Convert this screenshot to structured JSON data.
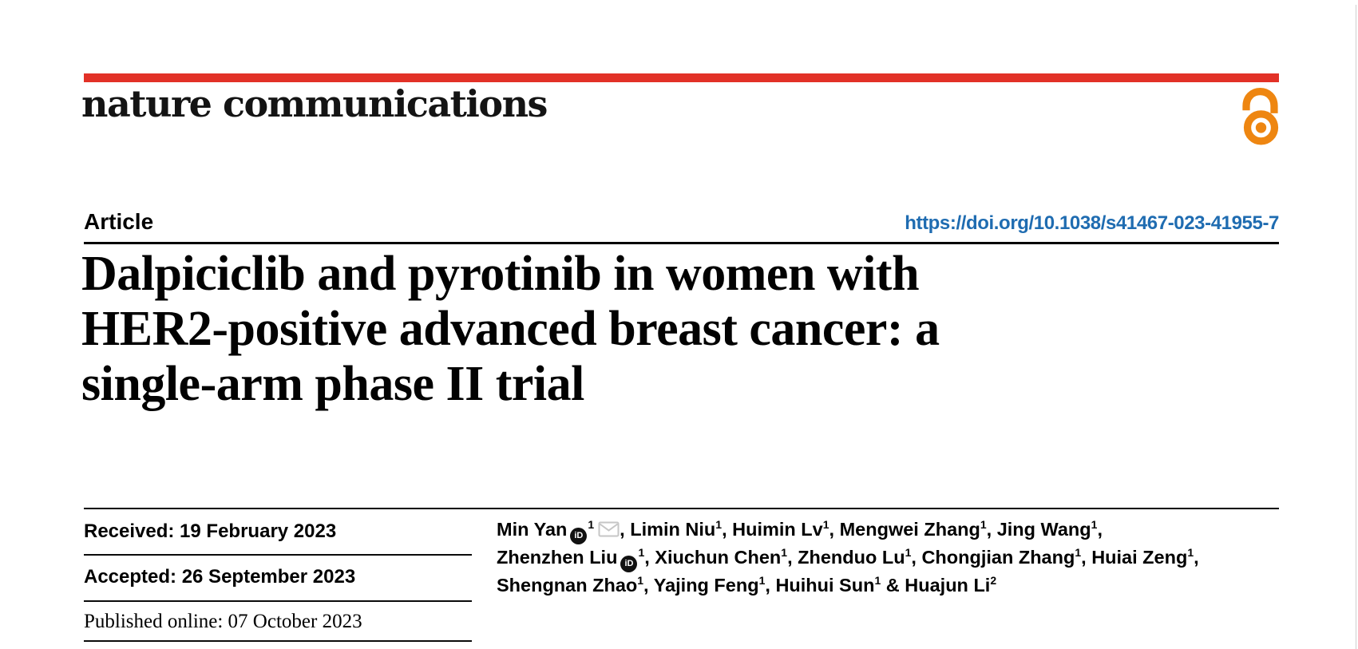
{
  "brand": {
    "logo_text": "nature communications",
    "accent_color": "#e23127",
    "open_access_color": "#ee8611"
  },
  "header": {
    "article_label": "Article",
    "doi_link": "https://doi.org/10.1038/s41467-023-41955-7",
    "link_color": "#1f6cb1"
  },
  "title": {
    "lines": [
      "Dalpiciclib and pyrotinib in women with",
      "HER2-positive advanced breast cancer: a",
      "single-arm phase II trial"
    ]
  },
  "dates": {
    "rows": [
      {
        "text": "Received: 19 February 2023"
      },
      {
        "text": "Accepted: 26 September 2023"
      },
      {
        "text": "Published online: 07 October 2023"
      }
    ]
  },
  "authors": {
    "lines": [
      [
        {
          "name": "Min Yan",
          "orcid": true,
          "sup": "1",
          "email": true,
          "after": ", "
        },
        {
          "name": "Limin Niu",
          "sup": "1",
          "after": ", "
        },
        {
          "name": "Huimin Lv",
          "sup": "1",
          "after": ", "
        },
        {
          "name": "Mengwei Zhang",
          "sup": "1",
          "after": ", "
        },
        {
          "name": "Jing Wang",
          "sup": "1",
          "after": ","
        }
      ],
      [
        {
          "name": "Zhenzhen Liu",
          "orcid": true,
          "sup": "1",
          "after": ", "
        },
        {
          "name": "Xiuchun Chen",
          "sup": "1",
          "after": ", "
        },
        {
          "name": "Zhenduo Lu",
          "sup": "1",
          "after": ", "
        },
        {
          "name": "Chongjian Zhang",
          "sup": "1",
          "after": ", "
        },
        {
          "name": "Huiai Zeng",
          "sup": "1",
          "after": ","
        }
      ],
      [
        {
          "name": "Shengnan Zhao",
          "sup": "1",
          "after": ", "
        },
        {
          "name": "Yajing Feng",
          "sup": "1",
          "after": ", "
        },
        {
          "name": "Huihui Sun",
          "sup": "1",
          "after": " & "
        },
        {
          "name": "Huajun Li",
          "sup": "2",
          "after": ""
        }
      ]
    ]
  },
  "icons": {
    "orcid_text": "iD"
  }
}
